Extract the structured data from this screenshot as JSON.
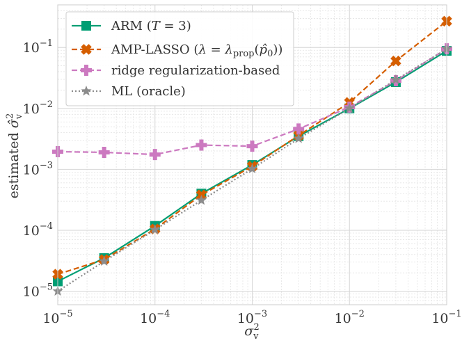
{
  "chart_data": {
    "type": "line",
    "xscale": "log",
    "yscale": "log",
    "xlim": [
      1e-05,
      0.1
    ],
    "ylim": [
      6e-06,
      0.5
    ],
    "xlabel": "σ²_v",
    "ylabel": "estimated σ̂²_v",
    "xlabel_parts": {
      "base": "σ",
      "sup": "2",
      "sub": "v"
    },
    "ylabel_parts": {
      "prefix": "estimated ",
      "base": "σ̂",
      "sup": "2",
      "sub": "v"
    },
    "grid": true,
    "legend_position": "top-left",
    "x_ticks": [
      {
        "value": 1e-05,
        "label": "10",
        "exp": "−5"
      },
      {
        "value": 0.0001,
        "label": "10",
        "exp": "−4"
      },
      {
        "value": 0.001,
        "label": "10",
        "exp": "−3"
      },
      {
        "value": 0.01,
        "label": "10",
        "exp": "−2"
      },
      {
        "value": 0.1,
        "label": "10",
        "exp": "−1"
      }
    ],
    "y_ticks": [
      {
        "value": 1e-05,
        "label": "10",
        "exp": "−5"
      },
      {
        "value": 0.0001,
        "label": "10",
        "exp": "−4"
      },
      {
        "value": 0.001,
        "label": "10",
        "exp": "−3"
      },
      {
        "value": 0.01,
        "label": "10",
        "exp": "−2"
      },
      {
        "value": 0.1,
        "label": "10",
        "exp": "−1"
      }
    ],
    "x": [
      1e-05,
      3e-05,
      0.0001,
      0.0003,
      0.001,
      0.003,
      0.01,
      0.03,
      0.1
    ],
    "series": [
      {
        "name": "ARM (T = 3)",
        "legend_parts": [
          "ARM (",
          "T",
          " = 3)"
        ],
        "color": "#009e73",
        "marker": "square",
        "dash": "solid",
        "values": [
          1.45e-05,
          3.5e-05,
          0.000118,
          0.0004,
          0.00118,
          0.0035,
          0.01,
          0.027,
          0.088
        ]
      },
      {
        "name": "AMP-LASSO (λ = λprop(p̂0))",
        "legend_parts": [
          "AMP-LASSO (",
          "λ",
          " = ",
          "λ",
          "prop",
          "(",
          "p̂",
          "0",
          "))"
        ],
        "color": "#d55e00",
        "marker": "x",
        "dash": "dashed",
        "values": [
          1.9e-05,
          3.3e-05,
          0.000105,
          0.00038,
          0.00112,
          0.0036,
          0.0125,
          0.06,
          0.27
        ]
      },
      {
        "name": "ridge regularization-based",
        "legend_parts": [
          "ridge regularization-based"
        ],
        "color": "#cc79c0",
        "marker": "plus",
        "dash": "dashed",
        "values": [
          0.00195,
          0.0019,
          0.00175,
          0.0025,
          0.0024,
          0.0046,
          0.0105,
          0.0285,
          0.095
        ]
      },
      {
        "name": "ML (oracle)",
        "legend_parts": [
          "ML (oracle)"
        ],
        "color": "#8c8c8c",
        "marker": "star",
        "dash": "dotted",
        "values": [
          1e-05,
          3.1e-05,
          0.000102,
          0.00031,
          0.00102,
          0.0032,
          0.01,
          0.0295,
          0.095
        ]
      }
    ]
  }
}
